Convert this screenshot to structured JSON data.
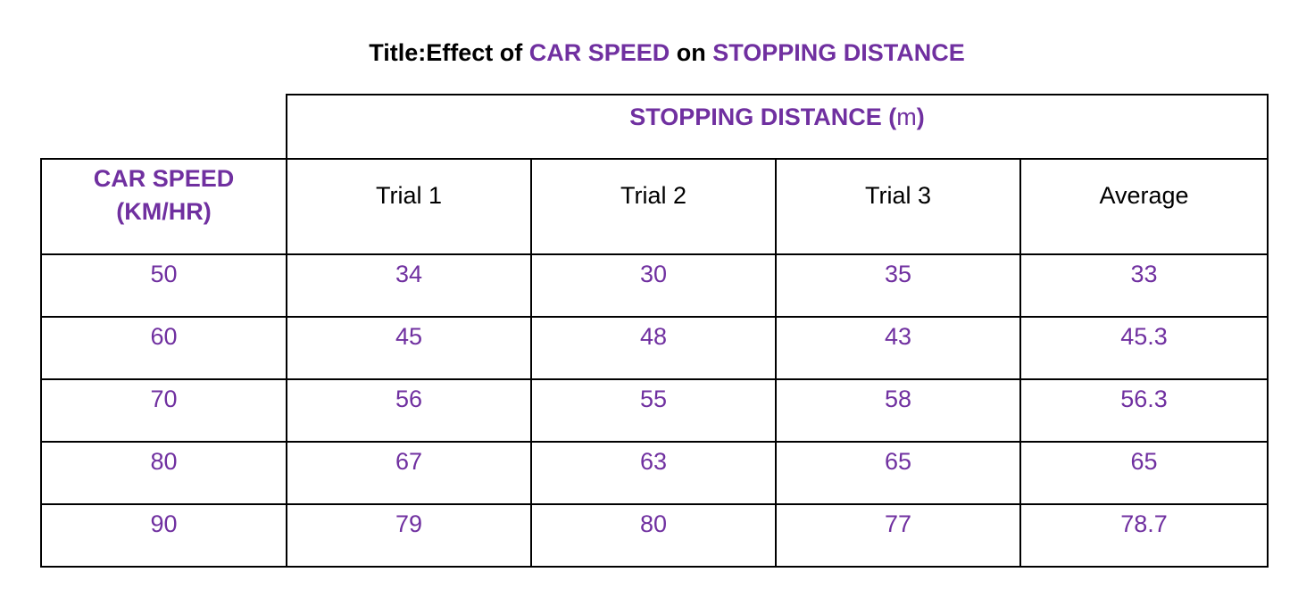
{
  "title": {
    "prefix": "Title:Effect of ",
    "variable_1": "CAR SPEED",
    "middle": " on ",
    "variable_2": "STOPPING DISTANCE"
  },
  "table": {
    "group_header": {
      "label": "STOPPING DISTANCE ",
      "unit_open": "(",
      "unit": "m",
      "unit_close": ")"
    },
    "speed_header_line1": "CAR SPEED",
    "speed_header_line2": "(KM/HR)",
    "columns": [
      "Trial 1",
      "Trial 2",
      "Trial 3",
      "Average"
    ],
    "rows": [
      {
        "speed": "50",
        "trial1": "34",
        "trial2": "30",
        "trial3": "35",
        "average": "33"
      },
      {
        "speed": "60",
        "trial1": "45",
        "trial2": "48",
        "trial3": "43",
        "average": "45.3"
      },
      {
        "speed": "70",
        "trial1": "56",
        "trial2": "55",
        "trial3": "58",
        "average": "56.3"
      },
      {
        "speed": "80",
        "trial1": "67",
        "trial2": "63",
        "trial3": "65",
        "average": "65"
      },
      {
        "speed": "90",
        "trial1": "79",
        "trial2": "80",
        "trial3": "77",
        "average": "78.7"
      }
    ]
  },
  "colors": {
    "accent": "#7030a0",
    "text": "#000000",
    "border": "#000000"
  }
}
